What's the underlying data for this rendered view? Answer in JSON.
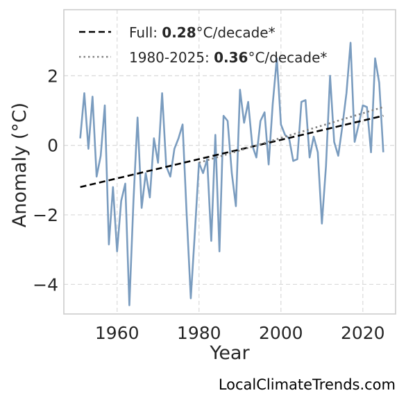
{
  "chart_data": {
    "type": "line",
    "xlabel": "Year",
    "ylabel": "Anomaly (°C)",
    "xlim": [
      1947,
      2028
    ],
    "ylim": [
      -4.85,
      3.9
    ],
    "xticks": [
      1960,
      1980,
      2000,
      2020
    ],
    "yticks": [
      2,
      0,
      -2,
      -4
    ],
    "ytick_labels": [
      "2",
      "0",
      "−2",
      "−4"
    ],
    "grid": true,
    "legend_position": "top-left",
    "series": [
      {
        "color": "#7a9cbf",
        "style": "solid",
        "x": [
          1951,
          1952,
          1953,
          1954,
          1955,
          1956,
          1957,
          1958,
          1959,
          1960,
          1961,
          1962,
          1963,
          1964,
          1965,
          1966,
          1967,
          1968,
          1969,
          1970,
          1971,
          1972,
          1973,
          1974,
          1975,
          1976,
          1977,
          1978,
          1979,
          1980,
          1981,
          1982,
          1983,
          1984,
          1985,
          1986,
          1987,
          1988,
          1989,
          1990,
          1991,
          1992,
          1993,
          1994,
          1995,
          1996,
          1997,
          1998,
          1999,
          2000,
          2001,
          2002,
          2003,
          2004,
          2005,
          2006,
          2007,
          2008,
          2009,
          2010,
          2011,
          2012,
          2013,
          2014,
          2015,
          2016,
          2017,
          2018,
          2019,
          2020,
          2021,
          2022,
          2023,
          2024,
          2025
        ],
        "values": [
          0.2,
          1.5,
          -0.1,
          1.4,
          -0.9,
          -0.3,
          1.15,
          -2.85,
          -1.2,
          -3.05,
          -1.6,
          -1.1,
          -4.6,
          -1.6,
          0.8,
          -1.8,
          -0.8,
          -1.5,
          0.2,
          -0.5,
          1.5,
          -0.6,
          -0.9,
          -0.1,
          0.2,
          0.6,
          -2.0,
          -4.4,
          -2.5,
          -0.5,
          -0.8,
          -0.4,
          -2.75,
          0.3,
          -3.05,
          0.85,
          0.7,
          -0.8,
          -1.75,
          1.6,
          0.65,
          1.25,
          0.0,
          -0.35,
          0.7,
          0.95,
          -0.55,
          1.2,
          2.5,
          0.6,
          0.3,
          0.2,
          -0.45,
          -0.4,
          1.25,
          1.3,
          -0.35,
          0.25,
          -0.2,
          -2.25,
          -0.6,
          2.0,
          0.1,
          -0.3,
          0.55,
          1.5,
          2.95,
          0.1,
          0.6,
          1.15,
          1.1,
          -0.2,
          2.5,
          1.8,
          -0.2
        ]
      }
    ],
    "trend_lines": [
      {
        "label_prefix": "Full: ",
        "label_value": "0.28",
        "label_suffix": "°C/decade*",
        "color": "#000000",
        "style": "dashed",
        "x": [
          1951,
          2025
        ],
        "y": [
          -1.2,
          0.85
        ]
      },
      {
        "label_prefix": "1980-2025: ",
        "label_value": "0.36",
        "label_suffix": "°C/decade*",
        "color": "#808080",
        "style": "dotted",
        "x": [
          1980,
          2025
        ],
        "y": [
          -0.5,
          1.1
        ]
      }
    ]
  },
  "footer": {
    "watermark": "LocalClimateTrends.com"
  }
}
